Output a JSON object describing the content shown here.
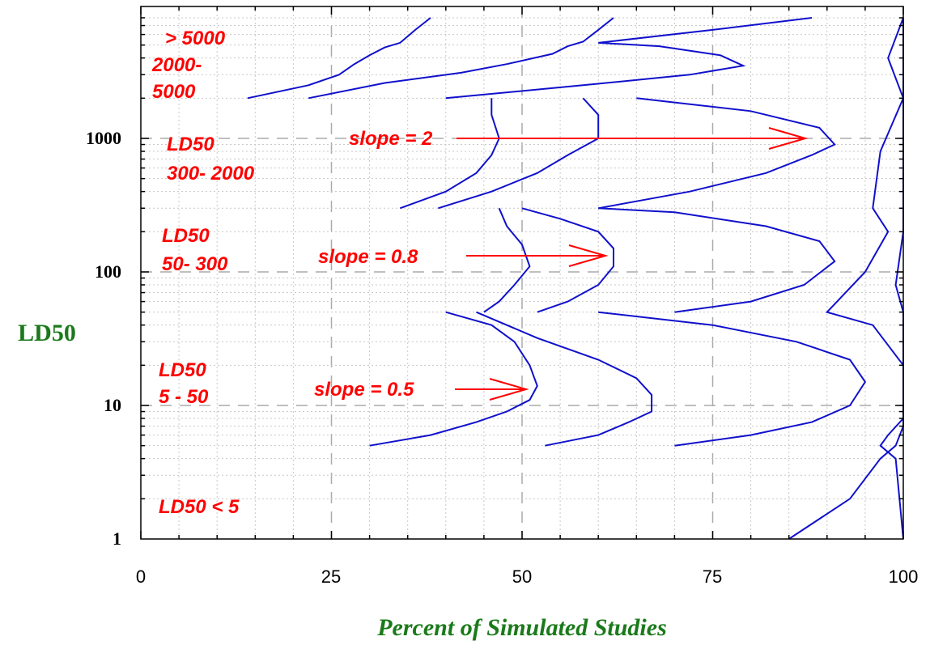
{
  "chart_data": {
    "type": "line",
    "xlabel": "Percent of Simulated Studies",
    "ylabel": "LD50",
    "xlim": [
      0,
      100
    ],
    "ylim": [
      1,
      8000
    ],
    "yscale": "log",
    "grid": true,
    "x_ticks": [
      "0",
      "25",
      "50",
      "75",
      "100"
    ],
    "y_ticks": [
      "1",
      "10",
      "100",
      "1000"
    ],
    "colors": {
      "curve": "#1010cc",
      "annotation": "#ff0000",
      "axis_label": "#1a7a1a"
    },
    "annotations": {
      "region_gt5000": "> 5000",
      "region_2000_a": "2000-",
      "region_2000_b": "5000",
      "region_300_a": "LD50",
      "region_300_b": "300- 2000",
      "region_50_a": "LD50",
      "region_50_b": "50- 300",
      "region_5_a": "LD50",
      "region_5_b": "5 - 50",
      "region_lt5": "LD50 < 5",
      "slope_2": "slope = 2",
      "slope_08": "slope = 0.8",
      "slope_05": "slope = 0.5"
    },
    "series": [
      {
        "slope": "0.5",
        "points": [
          [
            30,
            5
          ],
          [
            38,
            6
          ],
          [
            44,
            7.5
          ],
          [
            48,
            9
          ],
          [
            51,
            11
          ],
          [
            52,
            14
          ],
          [
            51,
            20
          ],
          [
            49,
            30
          ],
          [
            46,
            40
          ],
          [
            40,
            50
          ]
        ]
      },
      {
        "slope": "0.8",
        "points": [
          [
            53,
            5
          ],
          [
            60,
            6
          ],
          [
            64,
            7.5
          ],
          [
            67,
            9
          ],
          [
            67,
            12
          ],
          [
            65,
            16
          ],
          [
            60,
            22
          ],
          [
            52,
            32
          ],
          [
            44,
            50
          ]
        ]
      },
      {
        "slope": "2",
        "points": [
          [
            70,
            5
          ],
          [
            80,
            6
          ],
          [
            88,
            7.5
          ],
          [
            93,
            10
          ],
          [
            95,
            15
          ],
          [
            93,
            22
          ],
          [
            86,
            30
          ],
          [
            75,
            40
          ],
          [
            60,
            50
          ]
        ]
      },
      {
        "slope": "0.5",
        "points": [
          [
            45,
            50
          ],
          [
            47,
            60
          ],
          [
            49,
            80
          ],
          [
            51,
            110
          ],
          [
            50,
            160
          ],
          [
            48,
            220
          ],
          [
            47,
            300
          ]
        ]
      },
      {
        "slope": "0.8",
        "points": [
          [
            52,
            50
          ],
          [
            56,
            60
          ],
          [
            60,
            80
          ],
          [
            62,
            110
          ],
          [
            62,
            150
          ],
          [
            60,
            200
          ],
          [
            55,
            250
          ],
          [
            50,
            300
          ]
        ]
      },
      {
        "slope": "2",
        "points": [
          [
            70,
            50
          ],
          [
            80,
            60
          ],
          [
            87,
            80
          ],
          [
            91,
            120
          ],
          [
            89,
            170
          ],
          [
            82,
            220
          ],
          [
            70,
            280
          ],
          [
            60,
            300
          ]
        ]
      },
      {
        "slope": "0.5",
        "points": [
          [
            34,
            300
          ],
          [
            40,
            400
          ],
          [
            44,
            550
          ],
          [
            46,
            750
          ],
          [
            47,
            1000
          ],
          [
            46,
            1500
          ],
          [
            46,
            2000
          ]
        ]
      },
      {
        "slope": "0.8",
        "points": [
          [
            39,
            300
          ],
          [
            46,
            400
          ],
          [
            52,
            550
          ],
          [
            56,
            750
          ],
          [
            60,
            1000
          ],
          [
            60,
            1500
          ],
          [
            58,
            2000
          ]
        ]
      },
      {
        "slope": "2",
        "points": [
          [
            60,
            300
          ],
          [
            72,
            400
          ],
          [
            82,
            550
          ],
          [
            88,
            750
          ],
          [
            91,
            900
          ],
          [
            89,
            1200
          ],
          [
            80,
            1600
          ],
          [
            65,
            2000
          ]
        ]
      },
      {
        "slope": "0.5",
        "points": [
          [
            14,
            2000
          ],
          [
            22,
            2500
          ],
          [
            26,
            3000
          ],
          [
            28,
            3600
          ],
          [
            30,
            4200
          ],
          [
            32,
            4800
          ],
          [
            34,
            5200
          ],
          [
            36,
            6500
          ],
          [
            38,
            8000
          ]
        ]
      },
      {
        "slope": "0.8",
        "points": [
          [
            22,
            2000
          ],
          [
            32,
            2600
          ],
          [
            42,
            3100
          ],
          [
            48,
            3600
          ],
          [
            54,
            4300
          ],
          [
            56,
            4900
          ],
          [
            58,
            5300
          ],
          [
            60,
            6500
          ],
          [
            62,
            8000
          ]
        ]
      },
      {
        "slope": "2",
        "points": [
          [
            40,
            2000
          ],
          [
            58,
            2500
          ],
          [
            72,
            3000
          ],
          [
            79,
            3500
          ],
          [
            76,
            4200
          ],
          [
            68,
            4900
          ],
          [
            60,
            5200
          ],
          [
            75,
            6500
          ],
          [
            88,
            8000
          ]
        ]
      },
      {
        "slope": "upper",
        "points": [
          [
            100,
            1
          ],
          [
            99.5,
            2
          ],
          [
            99,
            4
          ],
          [
            97,
            5
          ],
          [
            98,
            6
          ],
          [
            100,
            8
          ],
          [
            100,
            50
          ],
          [
            99,
            80
          ],
          [
            100,
            200
          ],
          [
            100,
            2000
          ],
          [
            100,
            8000
          ]
        ]
      },
      {
        "slope": "upper2",
        "points": [
          [
            85,
            1
          ],
          [
            93,
            2
          ],
          [
            97,
            4
          ],
          [
            99,
            5
          ],
          [
            100,
            7
          ],
          [
            100,
            10
          ],
          [
            100,
            20
          ],
          [
            96,
            40
          ],
          [
            90,
            50
          ],
          [
            95,
            100
          ],
          [
            98,
            200
          ],
          [
            96,
            300
          ],
          [
            97,
            800
          ],
          [
            100,
            2000
          ],
          [
            98,
            4000
          ],
          [
            100,
            8000
          ]
        ]
      }
    ]
  }
}
